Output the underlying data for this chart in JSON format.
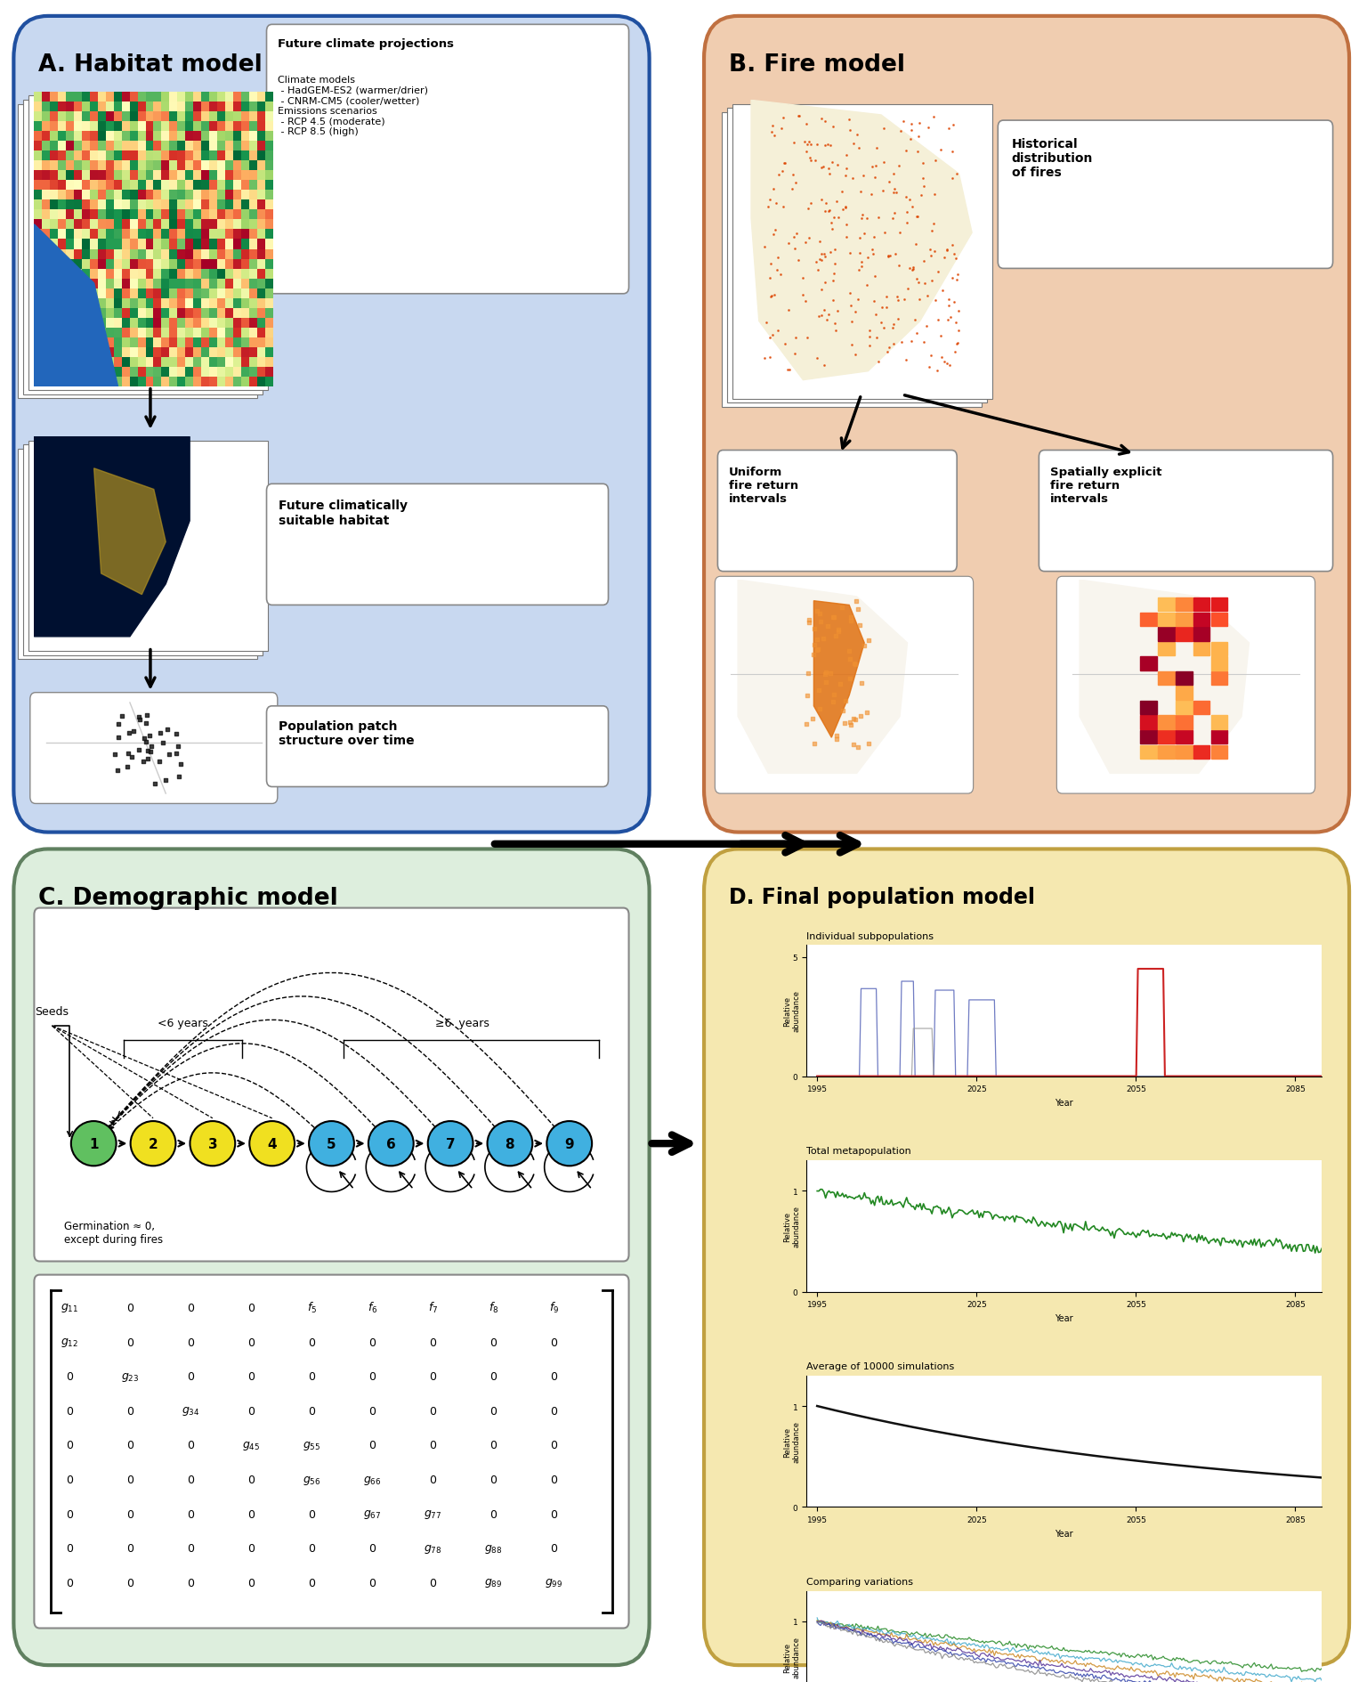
{
  "fig_width": 15.36,
  "fig_height": 18.9,
  "bg_color": "#ffffff",
  "panel_A": {
    "title": "A. Habitat model",
    "bg_color": "#c8d8f0",
    "border_color": "#2050a0",
    "text_box1_title": "Future climate projections",
    "text_box1_lines": [
      "Climate models",
      " - HadGEM-ES2 (warmer/drier)",
      " - CNRM-CM5 (cooler/wetter)",
      "Emissions scenarios",
      " - RCP 4.5 (moderate)",
      " - RCP 8.5 (high)"
    ],
    "text_box2": "Future climatically\nsuitable habitat",
    "text_box3": "Population patch\nstructure over time"
  },
  "panel_B": {
    "title": "B. Fire model",
    "bg_color": "#f0cdb0",
    "border_color": "#c07040",
    "text_box1": "Historical\ndistribution\nof fires",
    "text_box2": "Uniform\nfire return\nintervals",
    "text_box3": "Spatially explicit\nfire return\nintervals"
  },
  "panel_C": {
    "title": "C. Demographic model",
    "bg_color": "#ddeedd",
    "border_color": "#608060",
    "node_colors": [
      "#60c060",
      "#f0e020",
      "#f0e020",
      "#f0e020",
      "#40b0e0",
      "#40b0e0",
      "#40b0e0",
      "#40b0e0",
      "#40b0e0"
    ],
    "node_labels": [
      "1",
      "2",
      "3",
      "4",
      "5",
      "6",
      "7",
      "8",
      "9"
    ],
    "seeds_label": "Seeds",
    "lt6_label": "<6 years",
    "ge6_label": "≥6  years",
    "germination_label": "Germination ≈ 0,\nexcept during fires"
  },
  "panel_D": {
    "title": "D. Final population model",
    "bg_color": "#f5e8b0",
    "border_color": "#c0a040",
    "subplot_titles": [
      "Individual subpopulations",
      "Total metapopulation",
      "Average of 10000 simulations",
      "Comparing variations"
    ],
    "ylabel": "Relative\nabundance",
    "xlabel": "Year",
    "xticks": [
      1995,
      2025,
      2055,
      2085
    ]
  }
}
